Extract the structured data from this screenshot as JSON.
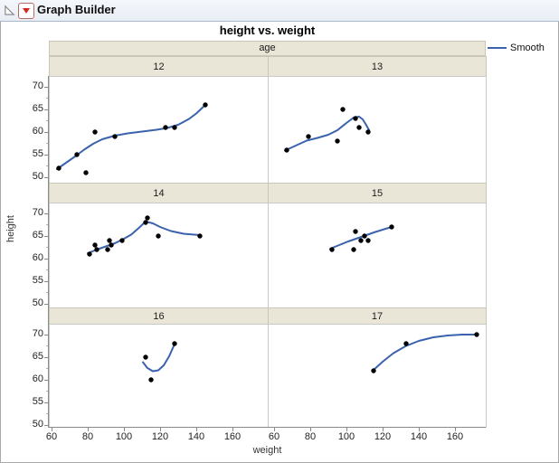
{
  "window": {
    "title": "Graph Builder",
    "disclosure_icon": "open-outline-triangle",
    "menu_icon": "red-triangle-menu"
  },
  "chart": {
    "title": "height vs. weight",
    "facet_header": "age",
    "xlabel": "weight",
    "ylabel": "height",
    "legend": {
      "label": "Smooth",
      "color": "#3b62ad"
    }
  },
  "chart_data": {
    "type": "scatter",
    "title": "height vs. weight",
    "facet_by": "age",
    "xlabel": "weight",
    "ylabel": "height",
    "x_ticks": [
      60,
      80,
      100,
      120,
      140,
      160
    ],
    "y_ticks": [
      70,
      65,
      60,
      55,
      50
    ],
    "xlim": [
      57,
      180
    ],
    "ylim": [
      49,
      72
    ],
    "grid": false,
    "legend_position": "right",
    "series_legend": [
      "Smooth"
    ],
    "point_color": "#000000",
    "smooth_color": "#3b62ad",
    "facets": [
      {
        "age": "12",
        "points": [
          [
            64,
            52
          ],
          [
            74,
            55
          ],
          [
            79,
            51
          ],
          [
            84,
            60
          ],
          [
            95,
            59
          ],
          [
            123,
            61
          ],
          [
            128,
            61
          ],
          [
            145,
            66
          ]
        ],
        "smooth": [
          [
            63,
            51.8
          ],
          [
            68,
            53.2
          ],
          [
            73,
            54.6
          ],
          [
            78,
            56.1
          ],
          [
            83,
            57.4
          ],
          [
            88,
            58.4
          ],
          [
            95,
            59.2
          ],
          [
            102,
            59.7
          ],
          [
            110,
            60.1
          ],
          [
            118,
            60.5
          ],
          [
            124,
            60.9
          ],
          [
            130,
            61.6
          ],
          [
            136,
            62.9
          ],
          [
            140,
            64.1
          ],
          [
            145,
            66.0
          ]
        ]
      },
      {
        "age": "13",
        "points": [
          [
            67,
            56
          ],
          [
            79,
            59
          ],
          [
            95,
            58
          ],
          [
            98,
            65
          ],
          [
            105,
            63
          ],
          [
            107,
            61
          ],
          [
            112,
            60
          ]
        ],
        "smooth": [
          [
            66,
            55.9
          ],
          [
            72,
            57.0
          ],
          [
            78,
            58.1
          ],
          [
            84,
            58.7
          ],
          [
            90,
            59.4
          ],
          [
            95,
            60.4
          ],
          [
            100,
            62.0
          ],
          [
            104,
            63.2
          ],
          [
            107,
            63.4
          ],
          [
            109,
            62.8
          ],
          [
            111,
            61.5
          ],
          [
            112.5,
            60.4
          ]
        ]
      },
      {
        "age": "14",
        "points": [
          [
            81,
            61
          ],
          [
            84,
            63
          ],
          [
            85,
            62
          ],
          [
            91,
            62
          ],
          [
            92,
            64
          ],
          [
            93,
            63
          ],
          [
            99,
            64
          ],
          [
            112,
            68
          ],
          [
            113,
            69
          ],
          [
            119,
            65
          ],
          [
            142,
            65
          ]
        ],
        "smooth": [
          [
            80,
            61.2
          ],
          [
            85,
            62.0
          ],
          [
            90,
            62.7
          ],
          [
            95,
            63.4
          ],
          [
            100,
            64.4
          ],
          [
            104,
            65.3
          ],
          [
            108,
            66.7
          ],
          [
            112,
            68.2
          ],
          [
            116,
            67.8
          ],
          [
            120,
            67.0
          ],
          [
            126,
            66.1
          ],
          [
            133,
            65.5
          ],
          [
            142,
            65.2
          ]
        ]
      },
      {
        "age": "15",
        "points": [
          [
            92,
            62
          ],
          [
            104,
            62
          ],
          [
            105,
            66
          ],
          [
            108,
            64
          ],
          [
            110,
            65
          ],
          [
            112,
            64
          ],
          [
            125,
            67
          ]
        ],
        "smooth": [
          [
            91,
            62.2
          ],
          [
            96,
            63.0
          ],
          [
            101,
            63.8
          ],
          [
            106,
            64.5
          ],
          [
            111,
            65.2
          ],
          [
            116,
            65.9
          ],
          [
            120,
            66.4
          ],
          [
            125,
            67.0
          ]
        ]
      },
      {
        "age": "16",
        "points": [
          [
            112,
            65
          ],
          [
            115,
            60
          ],
          [
            128,
            68
          ]
        ],
        "smooth": [
          [
            110.5,
            63.9
          ],
          [
            113,
            62.6
          ],
          [
            116,
            61.9
          ],
          [
            119,
            62.1
          ],
          [
            122,
            63.2
          ],
          [
            125,
            65.2
          ],
          [
            128,
            67.9
          ]
        ]
      },
      {
        "age": "17",
        "points": [
          [
            115,
            62
          ],
          [
            133,
            68
          ],
          [
            172,
            70
          ]
        ],
        "smooth": [
          [
            114.5,
            62.0
          ],
          [
            120,
            64.0
          ],
          [
            126,
            65.9
          ],
          [
            133,
            67.5
          ],
          [
            140,
            68.6
          ],
          [
            148,
            69.4
          ],
          [
            156,
            69.8
          ],
          [
            164,
            70.0
          ],
          [
            171,
            70.0
          ]
        ]
      }
    ]
  }
}
